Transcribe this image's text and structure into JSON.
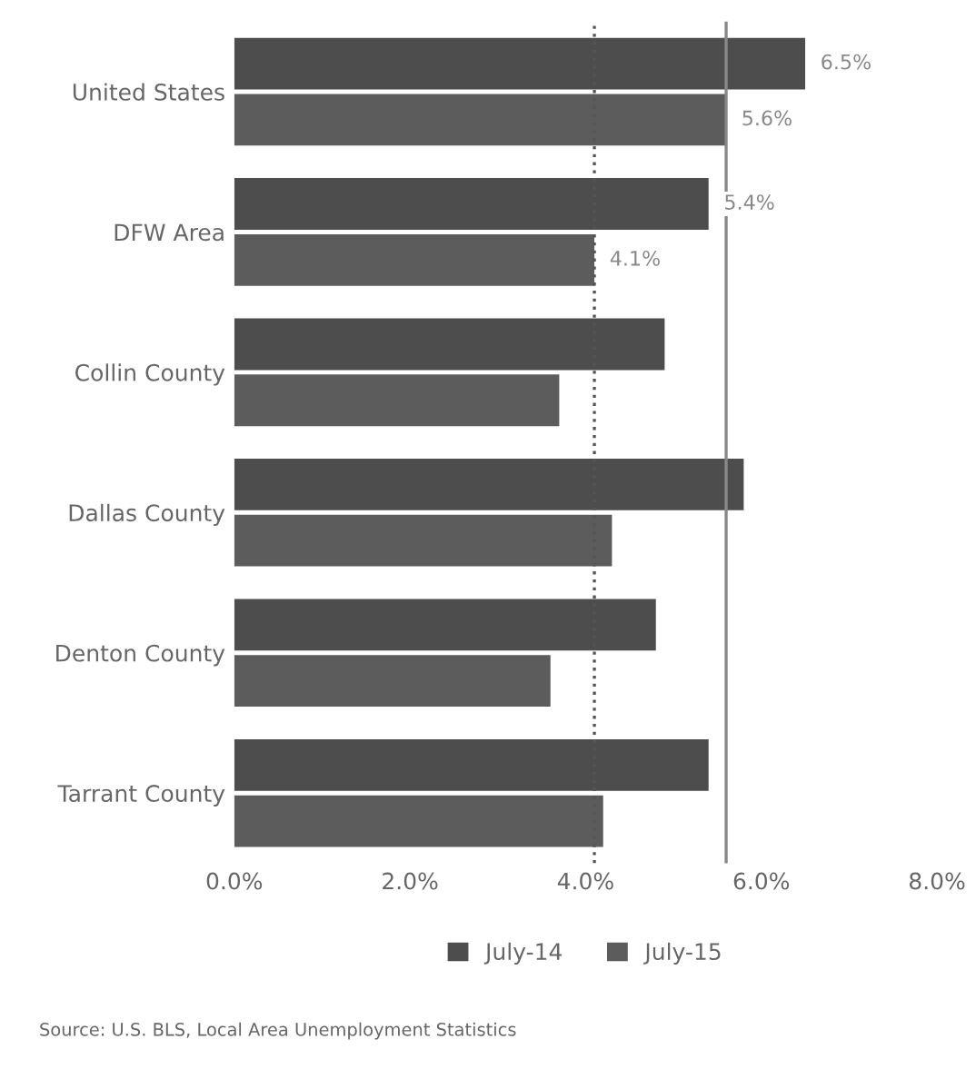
{
  "chart_data": {
    "type": "bar",
    "orientation": "horizontal",
    "categories": [
      "United States",
      "DFW Area",
      "Collin County",
      "Dallas County",
      "Denton County",
      "Tarrant County"
    ],
    "series": [
      {
        "name": "July-14",
        "color": "#4d4d4d",
        "values": [
          6.5,
          5.4,
          4.9,
          5.8,
          4.8,
          5.4
        ],
        "value_labels": [
          "6.5%",
          "5.4%",
          null,
          null,
          null,
          null
        ]
      },
      {
        "name": "July-15",
        "color": "#5c5c5c",
        "values": [
          5.6,
          4.1,
          3.7,
          4.3,
          3.6,
          4.2
        ],
        "value_labels": [
          "5.6%",
          "4.1%",
          null,
          null,
          null,
          null
        ]
      }
    ],
    "xlim": [
      0,
      8
    ],
    "xticks": [
      {
        "value": 0,
        "label": "0.0%"
      },
      {
        "value": 2,
        "label": "2.0%"
      },
      {
        "value": 4,
        "label": "4.0%"
      },
      {
        "value": 6,
        "label": "6.0%"
      },
      {
        "value": 8,
        "label": "8.0%"
      }
    ],
    "ref_lines": [
      {
        "axis": "x",
        "value": 4.1,
        "color": "#555555",
        "line_style": "dotted"
      },
      {
        "axis": "x",
        "value": 5.6,
        "color": "#888888",
        "line_style": "solid"
      }
    ],
    "legend": "bottom",
    "grid": false,
    "annotations": [
      "Source: U.S. BLS, Local Area Unemployment Statistics"
    ]
  }
}
